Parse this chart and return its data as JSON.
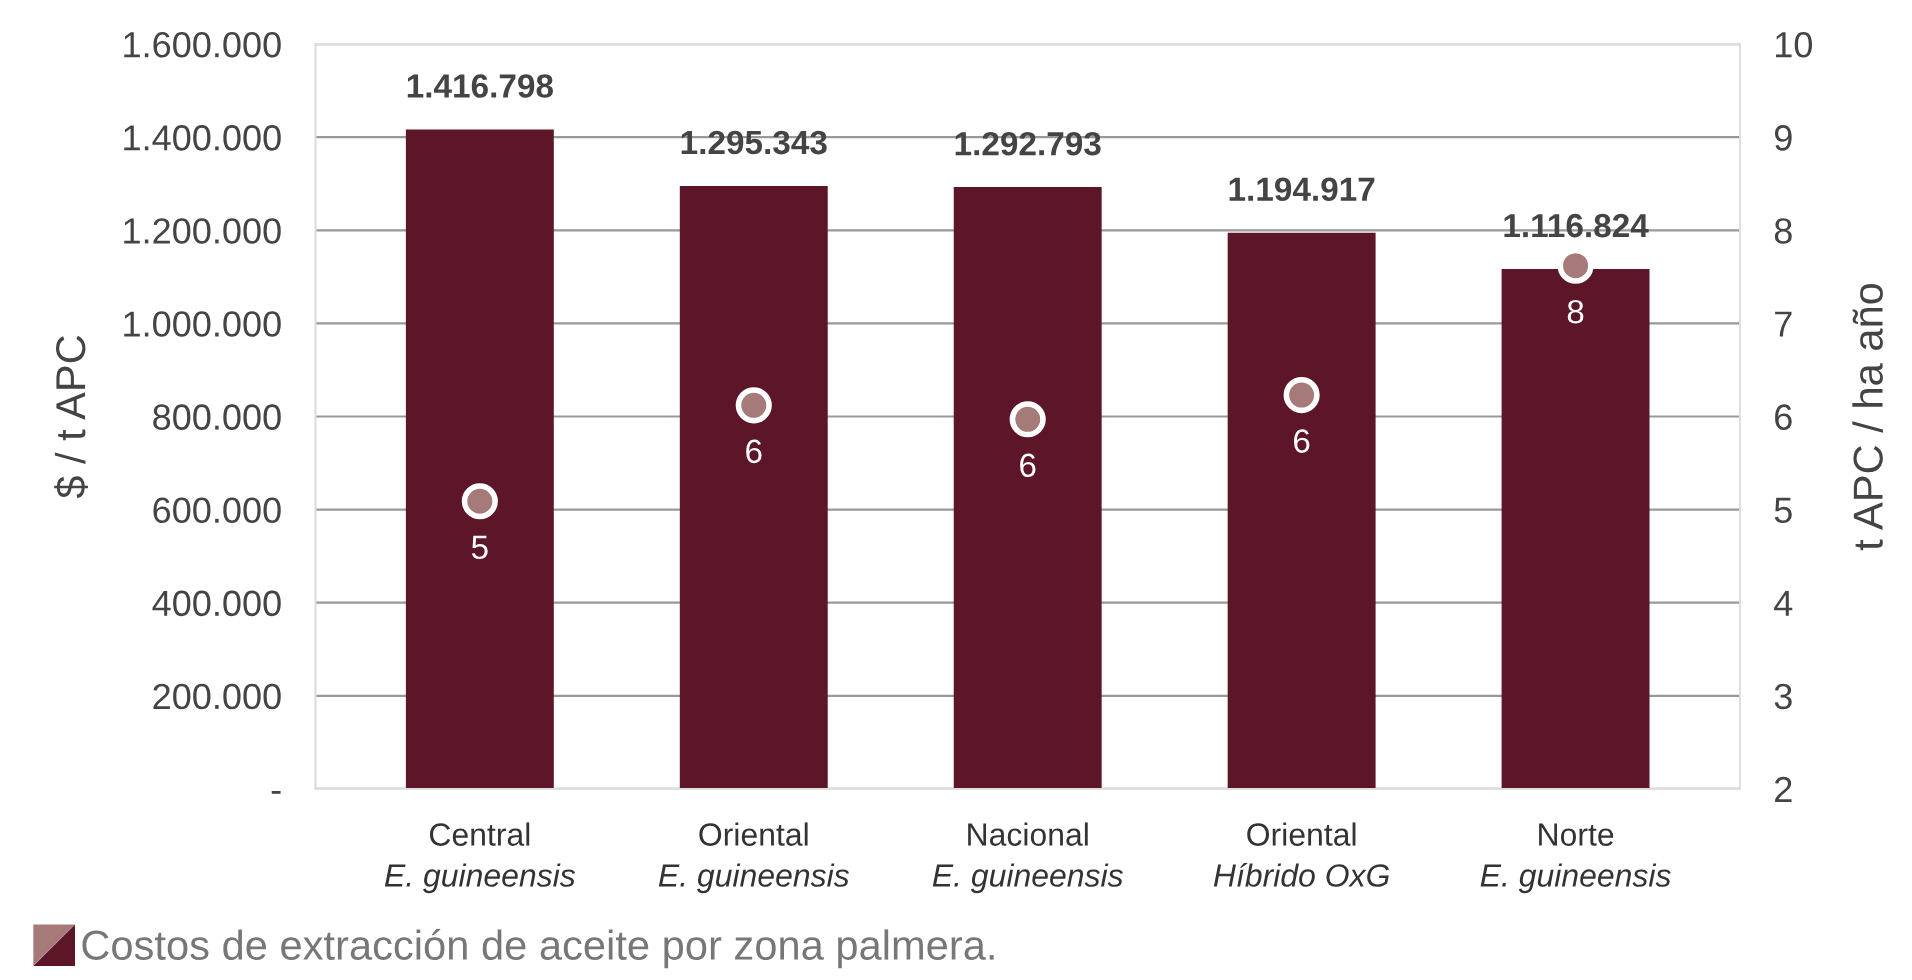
{
  "chart_data": {
    "type": "bar",
    "categories": [
      "Central\nE. guineensis",
      "Oriental\nE. guineensis",
      "Nacional\nE. guineensis",
      "Oriental\nHíbrido OxG",
      "Norte\nE. guineensis"
    ],
    "series": [
      {
        "color": "#5c1627",
        "values": [
          1416798,
          1295343,
          1292793,
          1194917,
          1116824
        ],
        "value_labels": [
          "1.416.798",
          "1.295.343",
          "1.292.793",
          "1.194.917",
          "1.116.824"
        ]
      },
      {
        "type": "scatter",
        "axis": "y2",
        "color": "#a67a78",
        "values": [
          5.09,
          6.12,
          5.97,
          6.23,
          7.62
        ],
        "value_labels": [
          "5",
          "6",
          "6",
          "6",
          "8"
        ]
      }
    ],
    "ylabel": "$ / t APC",
    "y2label": "t APC / ha año",
    "ylim": [
      0,
      1600000
    ],
    "yticks": [
      {
        "value": 0,
        "label": "-"
      },
      {
        "value": 200000,
        "label": "200.000"
      },
      {
        "value": 400000,
        "label": "400.000"
      },
      {
        "value": 600000,
        "label": "600.000"
      },
      {
        "value": 800000,
        "label": "800.000"
      },
      {
        "value": 1000000,
        "label": "1.000.000"
      },
      {
        "value": 1200000,
        "label": "1.200.000"
      },
      {
        "value": 1400000,
        "label": "1.400.000"
      },
      {
        "value": 1600000,
        "label": "1.600.000"
      }
    ],
    "y2lim": [
      2,
      10
    ],
    "y2ticks": [
      2,
      3,
      4,
      5,
      6,
      7,
      8,
      9,
      10
    ],
    "grid": "y",
    "marker": "circle",
    "annotations": [
      "Costos de extracción de aceite por zona palmera."
    ]
  }
}
